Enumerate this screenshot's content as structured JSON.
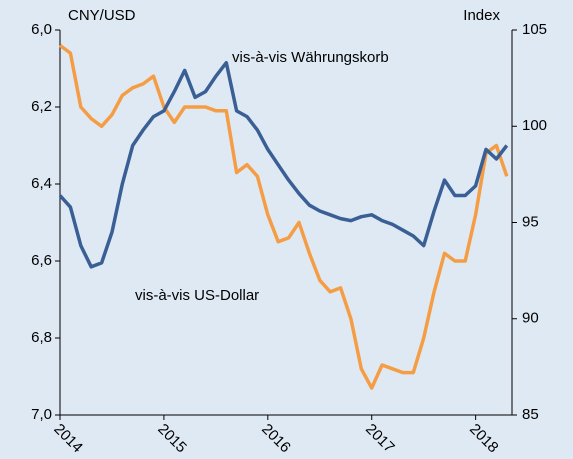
{
  "chart_data": {
    "type": "line",
    "y_label": "CNY/USD",
    "y2_label": "Index",
    "x": [
      2014.0,
      2014.1,
      2014.2,
      2014.3,
      2014.4,
      2014.5,
      2014.6,
      2014.7,
      2014.8,
      2014.9,
      2015.0,
      2015.1,
      2015.2,
      2015.3,
      2015.4,
      2015.5,
      2015.6,
      2015.7,
      2015.8,
      2015.9,
      2016.0,
      2016.1,
      2016.2,
      2016.3,
      2016.4,
      2016.5,
      2016.6,
      2016.7,
      2016.8,
      2016.9,
      2017.0,
      2017.1,
      2017.2,
      2017.3,
      2017.4,
      2017.5,
      2017.6,
      2017.7,
      2017.8,
      2017.9,
      2018.0,
      2018.1,
      2018.2,
      2018.3
    ],
    "xlim": [
      2014,
      2018.35
    ],
    "xticks": [
      2014,
      2015,
      2016,
      2017,
      2018
    ],
    "ylim": [
      7.0,
      6.0
    ],
    "yticks": [
      {
        "value": 6.0,
        "label": "6,0"
      },
      {
        "value": 6.2,
        "label": "6,2"
      },
      {
        "value": 6.4,
        "label": "6,4"
      },
      {
        "value": 6.6,
        "label": "6,6"
      },
      {
        "value": 6.8,
        "label": "6,8"
      },
      {
        "value": 7.0,
        "label": "7,0"
      }
    ],
    "y2lim": [
      85,
      105
    ],
    "y2ticks": [
      85,
      90,
      95,
      100,
      105
    ],
    "series": [
      {
        "name": "vis-à-vis US-Dollar",
        "color": "#f59d45",
        "axis": "y",
        "values": [
          6.04,
          6.06,
          6.2,
          6.23,
          6.25,
          6.22,
          6.17,
          6.15,
          6.14,
          6.12,
          6.2,
          6.24,
          6.2,
          6.2,
          6.2,
          6.21,
          6.21,
          6.37,
          6.35,
          6.38,
          6.48,
          6.55,
          6.54,
          6.5,
          6.58,
          6.65,
          6.68,
          6.67,
          6.75,
          6.88,
          6.93,
          6.87,
          6.88,
          6.89,
          6.89,
          6.8,
          6.68,
          6.58,
          6.6,
          6.6,
          6.48,
          6.32,
          6.3,
          6.38
        ]
      },
      {
        "name": "vis-à-vis Währungskorb",
        "color": "#3a5f95",
        "axis": "y2",
        "values": [
          96.4,
          95.8,
          93.8,
          92.7,
          92.9,
          94.5,
          97.0,
          99.0,
          99.8,
          100.5,
          100.8,
          101.8,
          102.9,
          101.5,
          101.8,
          102.6,
          103.3,
          100.8,
          100.5,
          99.8,
          98.8,
          98.0,
          97.2,
          96.5,
          95.9,
          95.6,
          95.4,
          95.2,
          95.1,
          95.3,
          95.4,
          95.1,
          94.9,
          94.6,
          94.3,
          93.8,
          95.6,
          97.2,
          96.4,
          96.4,
          96.9,
          98.8,
          98.3,
          99.0
        ]
      }
    ]
  }
}
